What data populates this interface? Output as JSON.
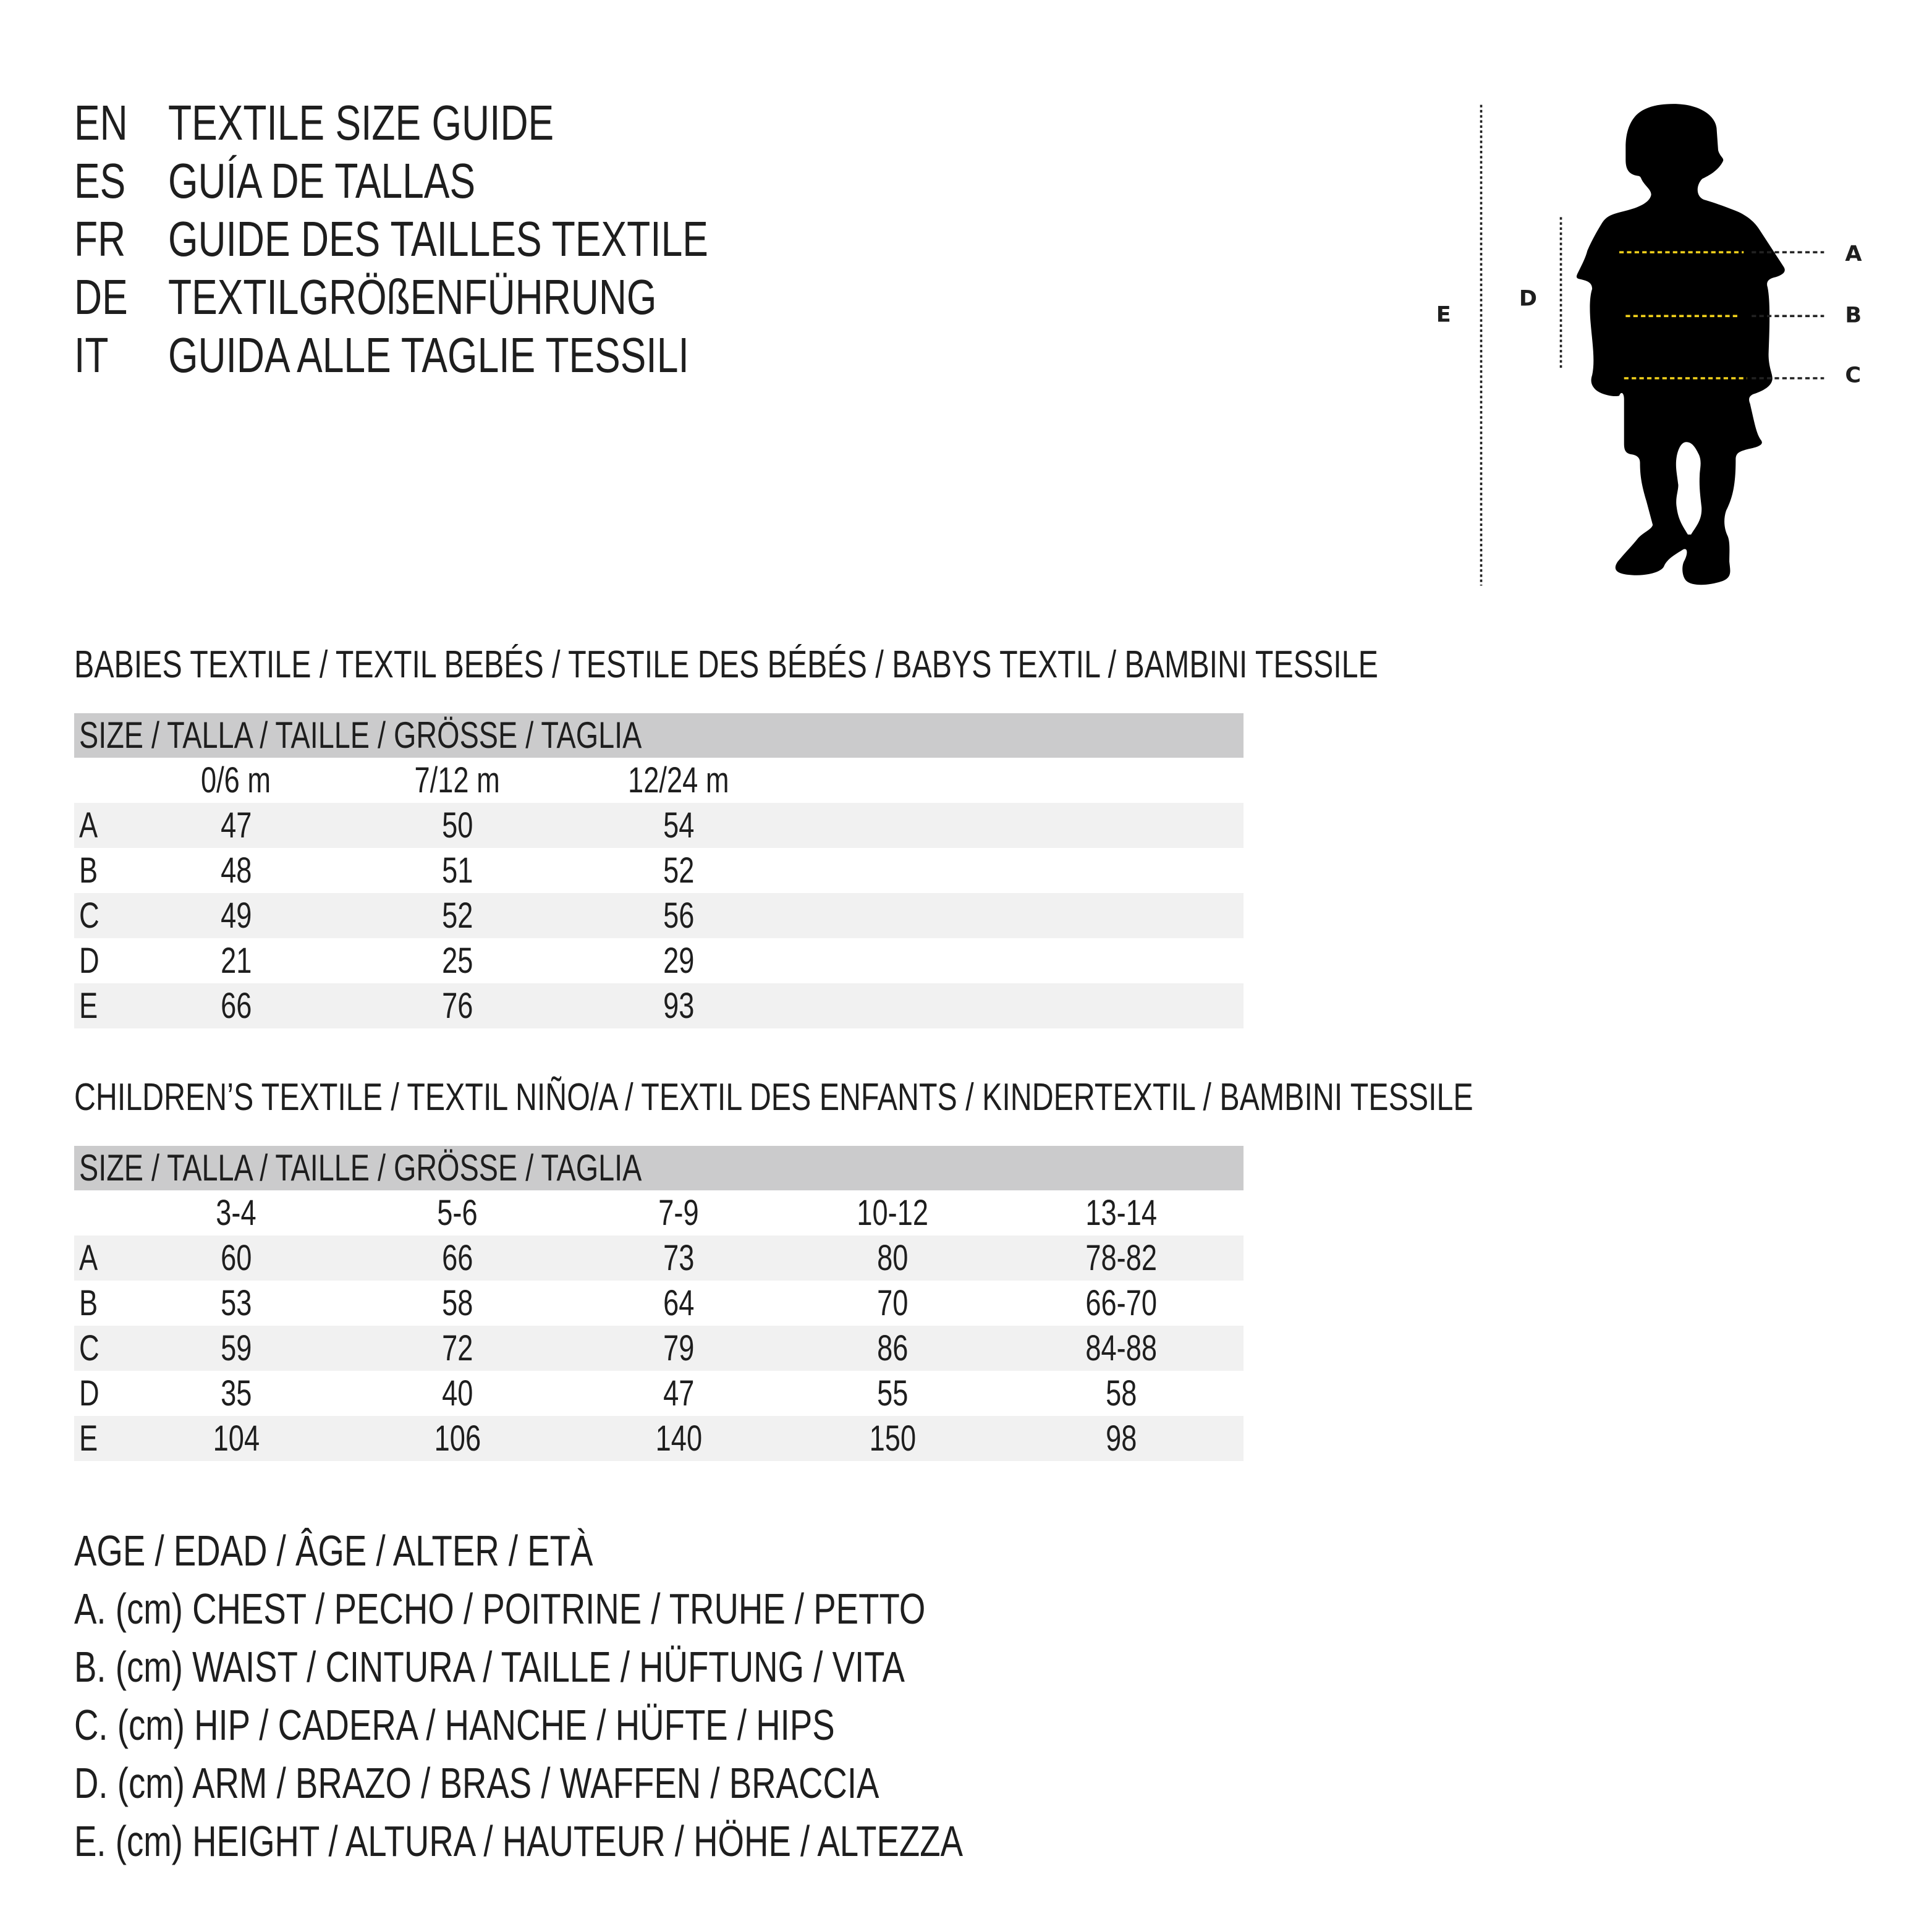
{
  "header": [
    {
      "code": "EN",
      "text": "TEXTILE SIZE GUIDE"
    },
    {
      "code": "ES",
      "text": "GUÍA DE TALLAS"
    },
    {
      "code": "FR",
      "text": "GUIDE DES TAILLES TEXTILE"
    },
    {
      "code": "DE",
      "text": "TEXTILGRÖßENFÜHRUNG"
    },
    {
      "code": "IT",
      "text": "GUIDA ALLE TAGLIE TESSILI"
    }
  ],
  "babies": {
    "title": "BABIES TEXTILE / TEXTIL BEBÉS / TESTILE DES BÉBÉS / BABYS TEXTIL / BAMBINI TESSILE",
    "size_header": "SIZE / TALLA / TAILLE / GRÖSSE / TAGLIA",
    "columns": [
      "0/6 m",
      "7/12 m",
      "12/24 m"
    ],
    "rows": [
      {
        "label": "A",
        "values": [
          "47",
          "50",
          "54"
        ]
      },
      {
        "label": "B",
        "values": [
          "48",
          "51",
          "52"
        ]
      },
      {
        "label": "C",
        "values": [
          "49",
          "52",
          "56"
        ]
      },
      {
        "label": "D",
        "values": [
          "21",
          "25",
          "29"
        ]
      },
      {
        "label": "E",
        "values": [
          "66",
          "76",
          "93"
        ]
      }
    ]
  },
  "children": {
    "title": "CHILDREN’S TEXTILE / TEXTIL NIÑO/A / TEXTIL DES ENFANTS / KINDERTEXTIL / BAMBINI TESSILE",
    "size_header": "SIZE / TALLA / TAILLE / GRÖSSE / TAGLIA",
    "columns": [
      "3-4",
      "5-6",
      "7-9",
      "10-12",
      "13-14"
    ],
    "rows": [
      {
        "label": "A",
        "values": [
          "60",
          "66",
          "73",
          "80",
          "78-82"
        ]
      },
      {
        "label": "B",
        "values": [
          "53",
          "58",
          "64",
          "70",
          "66-70"
        ]
      },
      {
        "label": "C",
        "values": [
          "59",
          "72",
          "79",
          "86",
          "84-88"
        ]
      },
      {
        "label": "D",
        "values": [
          "35",
          "40",
          "47",
          "55",
          "58"
        ]
      },
      {
        "label": "E",
        "values": [
          "104",
          "106",
          "140",
          "150",
          "98"
        ]
      }
    ]
  },
  "legend": [
    "AGE / EDAD / ÂGE / ALTER / ETÀ",
    "A. (cm) CHEST / PECHO / POITRINE / TRUHE / PETTO",
    "B. (cm) WAIST / CINTURA / TAILLE / HÜFTUNG / VITA",
    "C. (cm) HIP / CADERA / HANCHE / HÜFTE / HIPS",
    "D. (cm) ARM / BRAZO / BRAS / WAFFEN / BRACCIA",
    "E. (cm) HEIGHT / ALTURA / HAUTEUR / HÖHE / ALTEZZA"
  ],
  "figure": {
    "labels": {
      "A": "A",
      "B": "B",
      "C": "C",
      "D": "D",
      "E": "E"
    },
    "colors": {
      "silhouette": "#000000",
      "measure_line": "#f2d21b",
      "dots": "#222222"
    },
    "icon": "child-silhouette-icon"
  }
}
